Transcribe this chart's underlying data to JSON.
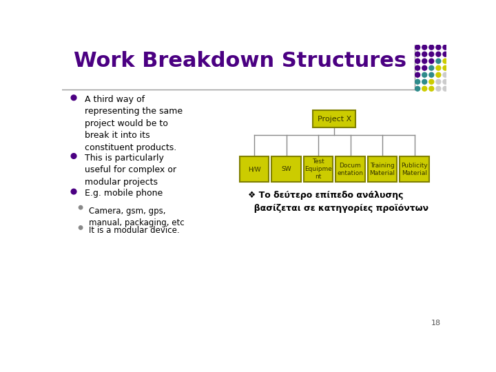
{
  "title": "Work Breakdown Structures",
  "title_color": "#4B0082",
  "bg_color": "#FFFFFF",
  "bullet_color": "#4B0082",
  "bullet_points": [
    "A third way of\nrepresenting the same\nproject would be to\nbreak it into its\nconstituent products.",
    "This is particularly\nuseful for complex or\nmodular projects",
    "E.g. mobile phone"
  ],
  "sub_bullets": [
    "Camera, gsm, gps,\nmanual, packaging, etc",
    "It is a modular device."
  ],
  "wbs_box_color": "#CCCC00",
  "wbs_box_border": "#808000",
  "wbs_text_color": "#333300",
  "wbs_root": "Project X",
  "wbs_children": [
    "H/W",
    "SW",
    "Test\nEquipme\nnt",
    "Docum\nentation",
    "Training\nMaterial",
    "Publicity\nMaterial"
  ],
  "greek_text": "❖ Το δεύτερο επίπεδο ανάλυσης\n  βασίζεται σε κατηγορίες προϊόντων",
  "page_number": "18",
  "dot_grid": [
    [
      "#4B0082",
      "#4B0082",
      "#4B0082",
      "#4B0082",
      "#4B0082"
    ],
    [
      "#4B0082",
      "#4B0082",
      "#4B0082",
      "#4B0082",
      "#4B0082"
    ],
    [
      "#4B0082",
      "#4B0082",
      "#4B0082",
      "#2E8B8B",
      "#CCCC00"
    ],
    [
      "#4B0082",
      "#4B0082",
      "#2E8B8B",
      "#CCCC00",
      "#CCCC00"
    ],
    [
      "#4B0082",
      "#2E8B8B",
      "#2E8B8B",
      "#CCCC00",
      "#CCCCCC"
    ],
    [
      "#2E8B8B",
      "#2E8B8B",
      "#CCCC00",
      "#CCCCCC",
      "#CCCCCC"
    ],
    [
      "#2E8B8B",
      "#CCCC00",
      "#CCCC00",
      "#CCCCCC",
      "#CCCCCC"
    ]
  ]
}
